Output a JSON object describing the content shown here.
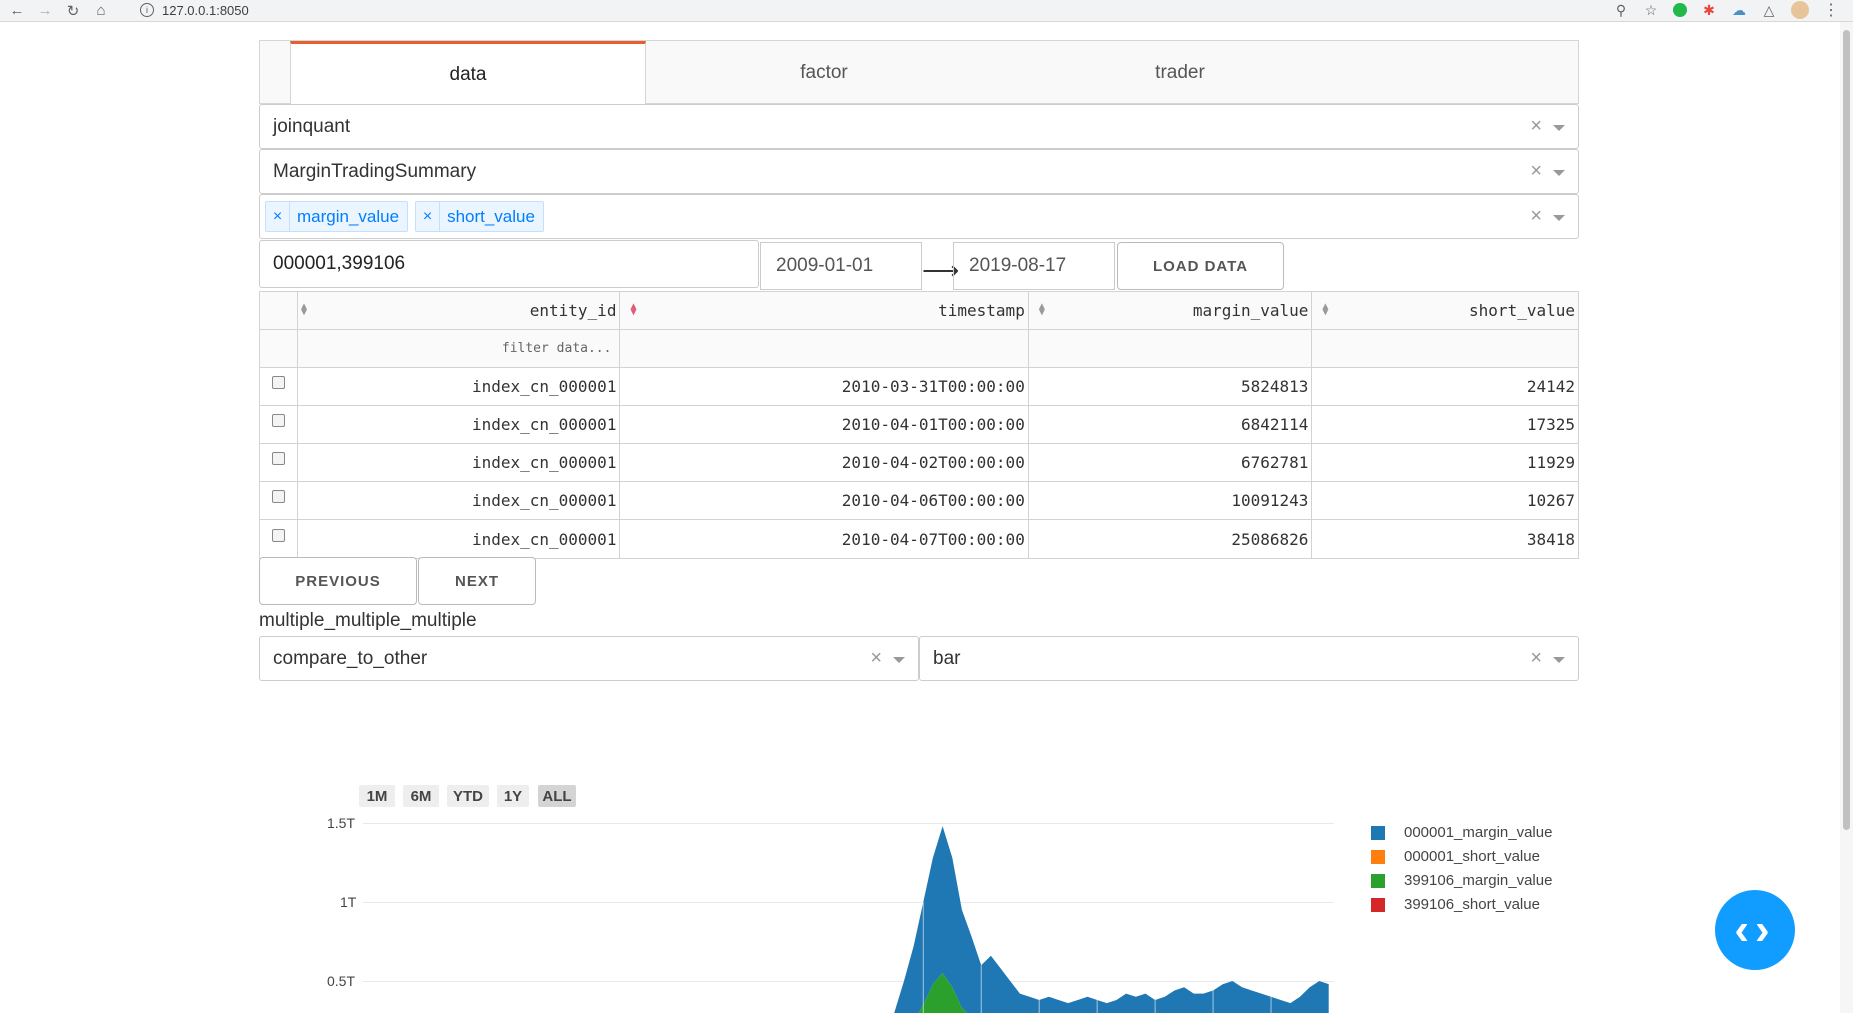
{
  "browser": {
    "url": "127.0.0.1:8050"
  },
  "tabs": [
    {
      "label": "data"
    },
    {
      "label": "factor"
    },
    {
      "label": "trader"
    }
  ],
  "provider_select": {
    "value": "joinquant"
  },
  "schema_select": {
    "value": "MarginTradingSummary"
  },
  "columns_select": {
    "chips": [
      "margin_value",
      "short_value"
    ]
  },
  "codes_input": {
    "value": "000001,399106"
  },
  "date_range": {
    "start": "2009-01-01",
    "end": "2019-08-17"
  },
  "load_button": {
    "label": "LOAD DATA"
  },
  "table": {
    "headers": [
      "entity_id",
      "timestamp",
      "margin_value",
      "short_value"
    ],
    "filter_placeholder": "filter data...",
    "rows": [
      [
        "index_cn_000001",
        "2010-03-31T00:00:00",
        "5824813",
        "24142"
      ],
      [
        "index_cn_000001",
        "2010-04-01T00:00:00",
        "6842114",
        "17325"
      ],
      [
        "index_cn_000001",
        "2010-04-02T00:00:00",
        "6762781",
        "11929"
      ],
      [
        "index_cn_000001",
        "2010-04-06T00:00:00",
        "10091243",
        "10267"
      ],
      [
        "index_cn_000001",
        "2010-04-07T00:00:00",
        "25086826",
        "38418"
      ]
    ]
  },
  "pagination": {
    "previous": "PREVIOUS",
    "next": "NEXT"
  },
  "figure_label": "multiple_multiple_multiple",
  "compare_select": {
    "value": "compare_to_other"
  },
  "chart_type_select": {
    "value": "bar"
  },
  "range_selector": [
    "1M",
    "6M",
    "YTD",
    "1Y",
    "ALL"
  ],
  "chart_data": {
    "type": "area",
    "y_ticks": [
      "1.5T",
      "1T",
      "0.5T"
    ],
    "y_tick_values": [
      1.5,
      1.0,
      0.5
    ],
    "y_unit": "T",
    "ylim": [
      0,
      1.52
    ],
    "series": [
      {
        "name": "000001_margin_value",
        "color": "#1f77b4",
        "values": [
          0,
          0,
          0,
          0,
          0,
          0,
          0,
          0,
          0,
          0,
          0,
          0,
          0,
          0,
          0,
          0,
          0,
          0,
          0,
          0,
          0,
          0,
          0,
          0,
          0,
          0,
          0,
          0,
          0,
          0,
          0,
          0,
          0,
          0,
          0,
          0,
          0,
          0,
          0,
          0,
          0,
          0,
          0,
          0,
          0,
          0,
          0,
          0,
          0,
          0,
          0,
          0,
          0.04,
          0.1,
          0.18,
          0.3,
          0.5,
          0.72,
          1.0,
          1.28,
          1.48,
          1.28,
          0.95,
          0.78,
          0.6,
          0.66,
          0.58,
          0.5,
          0.42,
          0.4,
          0.38,
          0.4,
          0.38,
          0.36,
          0.38,
          0.4,
          0.38,
          0.36,
          0.38,
          0.42,
          0.4,
          0.42,
          0.38,
          0.4,
          0.44,
          0.46,
          0.42,
          0.42,
          0.44,
          0.48,
          0.5,
          0.46,
          0.44,
          0.42,
          0.4,
          0.38,
          0.36,
          0.4,
          0.46,
          0.5,
          0.48
        ]
      },
      {
        "name": "000001_short_value",
        "color": "#ff7f0e",
        "values": [
          0,
          0,
          0,
          0,
          0,
          0,
          0,
          0,
          0,
          0,
          0,
          0,
          0,
          0,
          0,
          0,
          0,
          0,
          0,
          0,
          0,
          0,
          0,
          0,
          0,
          0,
          0,
          0,
          0,
          0,
          0,
          0,
          0,
          0,
          0,
          0,
          0,
          0,
          0,
          0,
          0,
          0,
          0,
          0,
          0,
          0,
          0,
          0,
          0,
          0,
          0,
          0,
          0,
          0,
          0,
          0,
          0,
          0,
          0,
          0,
          0,
          0,
          0,
          0,
          0,
          0,
          0,
          0,
          0,
          0,
          0,
          0,
          0,
          0,
          0,
          0,
          0,
          0,
          0,
          0,
          0,
          0,
          0,
          0,
          0,
          0,
          0,
          0,
          0,
          0,
          0,
          0,
          0,
          0,
          0,
          0,
          0,
          0,
          0,
          0,
          0
        ]
      },
      {
        "name": "399106_margin_value",
        "color": "#2ca02c",
        "values": [
          0,
          0,
          0,
          0,
          0,
          0,
          0,
          0,
          0,
          0,
          0,
          0,
          0,
          0,
          0,
          0,
          0,
          0,
          0,
          0,
          0,
          0,
          0,
          0,
          0,
          0,
          0,
          0,
          0,
          0,
          0,
          0,
          0,
          0,
          0,
          0,
          0,
          0,
          0,
          0,
          0,
          0,
          0,
          0,
          0,
          0,
          0,
          0,
          0,
          0,
          0,
          0,
          0.01,
          0.03,
          0.05,
          0.09,
          0.15,
          0.24,
          0.35,
          0.48,
          0.55,
          0.46,
          0.33,
          0.27,
          0.22,
          0.26,
          0.22,
          0.18,
          0.15,
          0.14,
          0.13,
          0.14,
          0.13,
          0.12,
          0.13,
          0.14,
          0.13,
          0.12,
          0.13,
          0.15,
          0.14,
          0.15,
          0.13,
          0.14,
          0.16,
          0.17,
          0.15,
          0.15,
          0.16,
          0.18,
          0.19,
          0.17,
          0.16,
          0.15,
          0.14,
          0.13,
          0.12,
          0.14,
          0.16,
          0.18,
          0.17
        ]
      },
      {
        "name": "399106_short_value",
        "color": "#d62728",
        "values": [
          0,
          0,
          0,
          0,
          0,
          0,
          0,
          0,
          0,
          0,
          0,
          0,
          0,
          0,
          0,
          0,
          0,
          0,
          0,
          0,
          0,
          0,
          0,
          0,
          0,
          0,
          0,
          0,
          0,
          0,
          0,
          0,
          0,
          0,
          0,
          0,
          0,
          0,
          0,
          0,
          0,
          0,
          0,
          0,
          0,
          0,
          0,
          0,
          0,
          0,
          0,
          0,
          0,
          0,
          0,
          0,
          0,
          0,
          0,
          0,
          0,
          0,
          0,
          0,
          0,
          0,
          0,
          0,
          0,
          0,
          0,
          0,
          0,
          0,
          0,
          0,
          0,
          0,
          0,
          0,
          0,
          0,
          0,
          0,
          0,
          0,
          0,
          0,
          0,
          0,
          0,
          0,
          0,
          0,
          0,
          0,
          0,
          0,
          0,
          0,
          0
        ]
      }
    ]
  }
}
